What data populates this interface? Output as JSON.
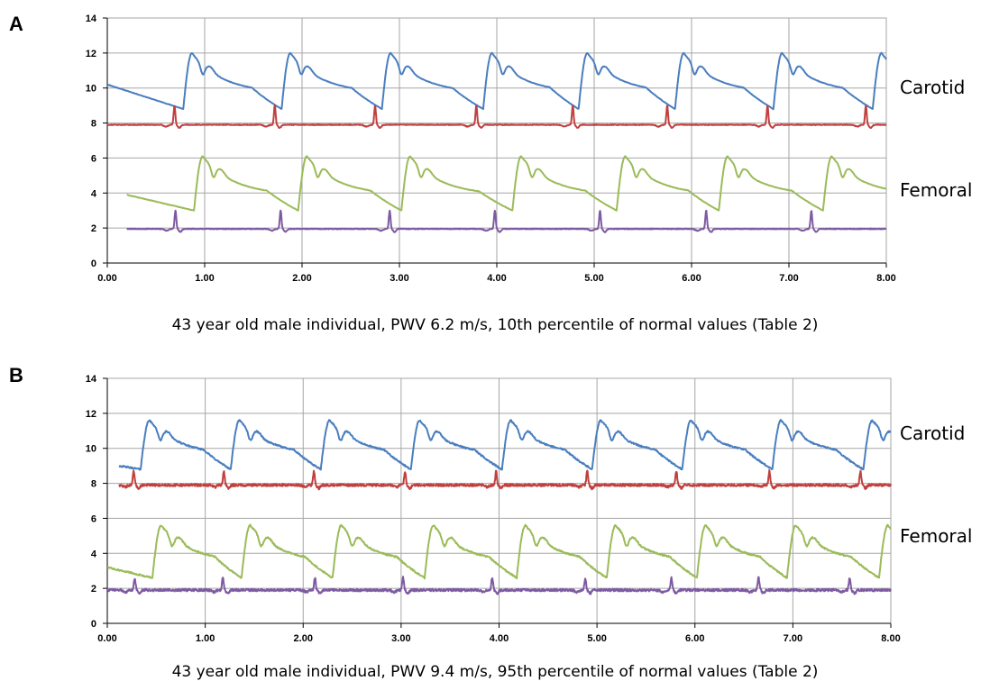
{
  "panels": [
    {
      "letter": "A",
      "caption": "43 year old male individual, PWV 6.2 m/s, 10th percentile of normal values (Table 2)",
      "carotid_label": "Carotid",
      "femoral_label": "Femoral"
    },
    {
      "letter": "B",
      "caption": "43 year old male individual, PWV 9.4 m/s, 95th percentile of normal values (Table 2)",
      "carotid_label": "Carotid",
      "femoral_label": "Femoral"
    }
  ],
  "chart_data": [
    {
      "type": "line",
      "title": "",
      "xlabel": "",
      "ylabel": "",
      "xlim": [
        0,
        8
      ],
      "ylim": [
        0,
        14
      ],
      "x_ticks": [
        "0.00",
        "1.00",
        "2.00",
        "3.00",
        "4.00",
        "5.00",
        "6.00",
        "7.00",
        "8.00"
      ],
      "y_ticks": [
        "0",
        "2",
        "4",
        "6",
        "8",
        "10",
        "12",
        "14"
      ],
      "grid": true,
      "series": [
        {
          "color": "#4a7ebf",
          "waveform": {
            "baseline": 8.8,
            "peak": 12.0,
            "beat_starts": [
              0.78,
              1.79,
              2.82,
              3.86,
              4.84,
              5.83,
              6.84,
              7.86
            ],
            "first_value": 10.2
          }
        },
        {
          "color": "#c0403f",
          "waveform": {
            "baseline": 7.9,
            "spike_height": 9.0,
            "spike_times": [
              0.69,
              1.72,
              2.75,
              3.79,
              4.78,
              5.75,
              6.78,
              7.79
            ]
          }
        },
        {
          "color": "#9bbb59",
          "waveform": {
            "baseline": 3.0,
            "peak": 6.1,
            "beat_starts": [
              0.89,
              1.96,
              3.02,
              4.16,
              5.23,
              6.28,
              7.35
            ],
            "first_value": 3.9,
            "x_start": 0.2
          }
        },
        {
          "color": "#7e5aa3",
          "waveform": {
            "baseline": 1.95,
            "spike_height": 3.0,
            "spike_times": [
              0.7,
              1.78,
              2.9,
              3.98,
              5.06,
              6.15,
              7.23
            ],
            "x_start": 0.2
          }
        }
      ]
    },
    {
      "type": "line",
      "title": "",
      "xlabel": "",
      "ylabel": "",
      "xlim": [
        0,
        8
      ],
      "ylim": [
        0,
        14
      ],
      "x_ticks": [
        "0.00",
        "1.00",
        "2.00",
        "3.00",
        "4.00",
        "5.00",
        "6.00",
        "7.00",
        "8.00"
      ],
      "y_ticks": [
        "0",
        "2",
        "4",
        "6",
        "8",
        "10",
        "12",
        "14"
      ],
      "grid": true,
      "series": [
        {
          "color": "#4a7ebf",
          "waveform": {
            "baseline": 8.8,
            "peak": 11.6,
            "beat_starts": [
              0.34,
              1.26,
              2.18,
              3.1,
              4.03,
              4.95,
              5.87,
              6.79,
              7.72
            ],
            "first_value": 9.0,
            "x_start": 0.12
          }
        },
        {
          "color": "#c0403f",
          "waveform": {
            "baseline": 7.9,
            "spike_height": 8.7,
            "spike_times": [
              0.27,
              1.19,
              2.11,
              3.04,
              3.97,
              4.9,
              5.81,
              6.76,
              7.69
            ],
            "x_start": 0.12
          }
        },
        {
          "color": "#9bbb59",
          "waveform": {
            "baseline": 2.6,
            "peak": 5.6,
            "beat_starts": [
              0.46,
              1.37,
              2.3,
              3.24,
              4.18,
              5.1,
              6.02,
              6.94,
              7.88
            ],
            "first_value": 3.2
          }
        },
        {
          "color": "#7e5aa3",
          "waveform": {
            "baseline": 1.9,
            "spike_height": 2.6,
            "spike_times": [
              0.28,
              1.18,
              2.12,
              3.02,
              3.93,
              4.88,
              5.76,
              6.65,
              7.58
            ]
          }
        }
      ]
    }
  ]
}
